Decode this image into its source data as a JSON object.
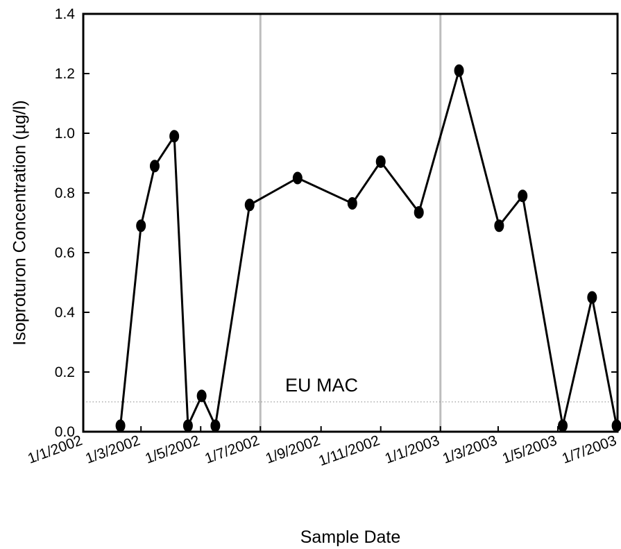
{
  "chart_data": {
    "type": "line",
    "xlabel": "Sample Date",
    "ylabel": "Isoproturon Concentration (µg/l)",
    "x_ticks": [
      "1/1/2002",
      "1/3/2002",
      "1/5/2002",
      "1/7/2002",
      "1/9/2002",
      "1/11/2002",
      "1/1/2003",
      "1/3/2003",
      "1/5/2003",
      "1/7/2003"
    ],
    "x_range": [
      "2002-01-01",
      "2003-07-01"
    ],
    "ylim": [
      0,
      1.4
    ],
    "y_ticks": [
      "0.0",
      "0.2",
      "0.4",
      "0.6",
      "0.8",
      "1.0",
      "1.2",
      "1.4"
    ],
    "grid": false,
    "series": [
      {
        "x": [
          "2002-02-08",
          "2002-03-01",
          "2002-03-15",
          "2002-04-04",
          "2002-04-18",
          "2002-05-02",
          "2002-05-16",
          "2002-06-20",
          "2002-08-08",
          "2002-10-03",
          "2002-11-01",
          "2002-12-10",
          "2003-01-20",
          "2003-03-02",
          "2003-03-26",
          "2003-05-06",
          "2003-06-05",
          "2003-06-30"
        ],
        "y": [
          0.02,
          0.69,
          0.89,
          0.99,
          0.02,
          0.12,
          0.02,
          0.76,
          0.85,
          0.765,
          0.905,
          0.735,
          1.21,
          0.69,
          0.79,
          0.02,
          0.45,
          0.02
        ]
      }
    ],
    "reference_lines": [
      {
        "label": "EU MAC",
        "y": 0.1
      }
    ],
    "vertical_lines_x": [
      "2002-07-01",
      "2003-01-01"
    ]
  }
}
